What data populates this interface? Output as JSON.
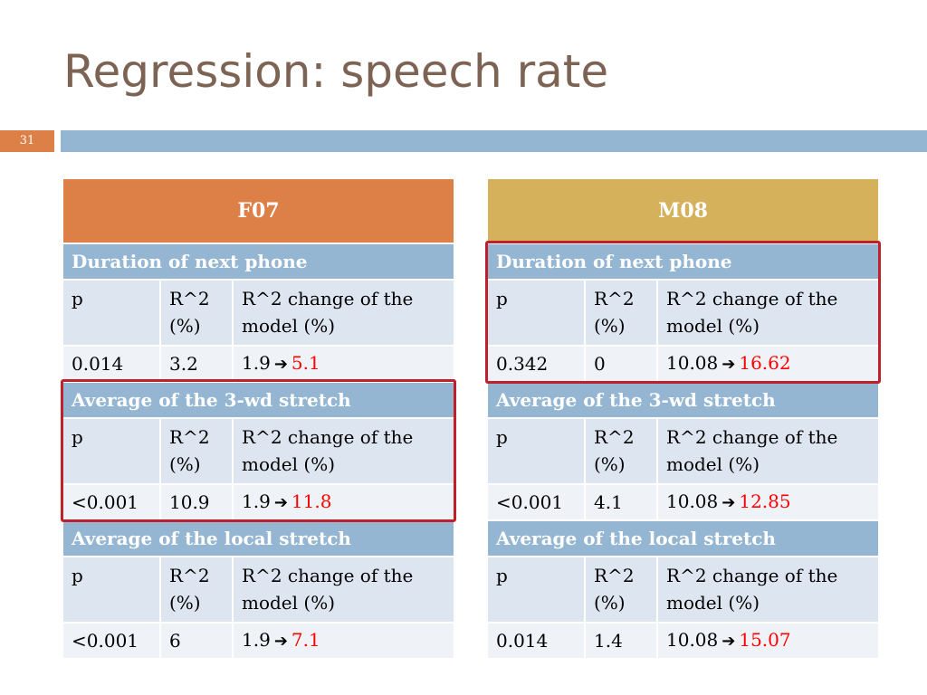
{
  "slide": {
    "title": "Regression: speech rate",
    "number": "31"
  },
  "tables": [
    {
      "speaker": "F07",
      "sections": [
        {
          "label": "Duration of next phone",
          "headers": [
            "p",
            "R^2 (%)",
            "R^2 change of the model (%)"
          ],
          "p": "0.014",
          "r2": "3.2",
          "change_from": "1.9",
          "change_to": "5.1"
        },
        {
          "label": "Average of the 3-wd stretch",
          "headers": [
            "p",
            "R^2 (%)",
            "R^2 change of the model (%)"
          ],
          "p": "<0.001",
          "r2": "10.9",
          "change_from": "1.9",
          "change_to": "11.8"
        },
        {
          "label": "Average of the local stretch",
          "headers": [
            "p",
            "R^2 (%)",
            "R^2 change of the model (%)"
          ],
          "p": "<0.001",
          "r2": "6",
          "change_from": "1.9",
          "change_to": "7.1"
        }
      ]
    },
    {
      "speaker": "M08",
      "sections": [
        {
          "label": "Duration of next phone",
          "headers": [
            "p",
            "R^2 (%)",
            "R^2 change of the model (%)"
          ],
          "p": "0.342",
          "r2": "0",
          "change_from": "10.08",
          "change_to": "16.62"
        },
        {
          "label": "Average of the 3-wd stretch",
          "headers": [
            "p",
            "R^2 (%)",
            "R^2 change of the model (%)"
          ],
          "p": "<0.001",
          "r2": "4.1",
          "change_from": "10.08",
          "change_to": "12.85"
        },
        {
          "label": "Average of the local stretch",
          "headers": [
            "p",
            "R^2 (%)",
            "R^2 change of the model (%)"
          ],
          "p": "0.014",
          "r2": "1.4",
          "change_from": "10.08",
          "change_to": "15.07"
        }
      ]
    }
  ],
  "highlights": [
    {
      "table": 0,
      "section": 1
    },
    {
      "table": 1,
      "section": 0
    }
  ],
  "colors": {
    "title_text": "#7d6354",
    "accent_orange": "#dd8047",
    "accent_gold": "#d6b15b",
    "accent_blue": "#94b6d2",
    "highlight_red": "#c0202a",
    "new_value_red": "#ff0000"
  },
  "icons": {
    "change_arrow": "arrow-right-icon"
  }
}
